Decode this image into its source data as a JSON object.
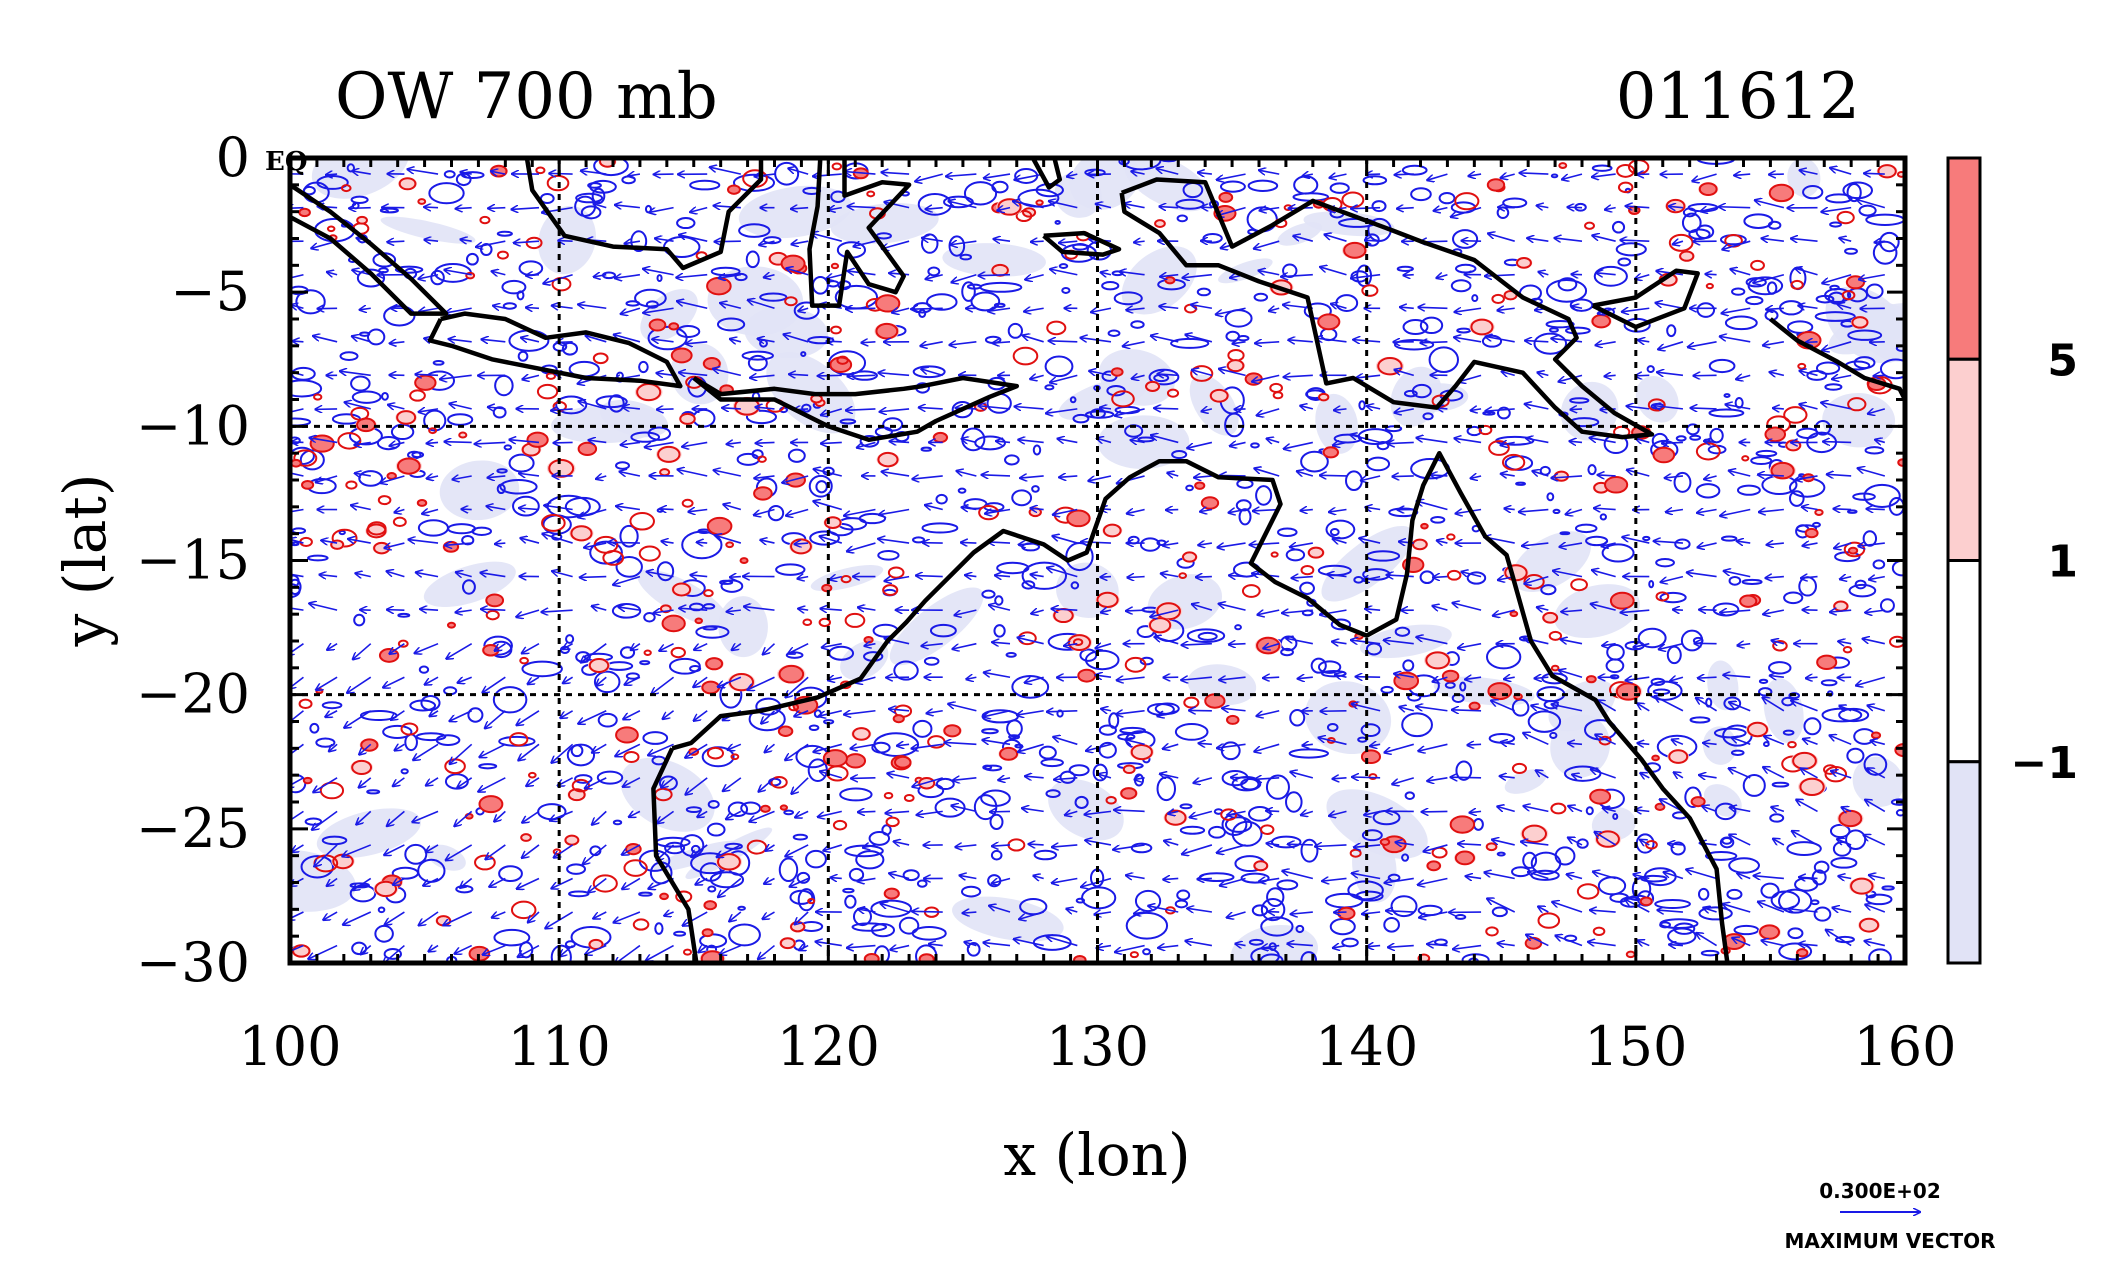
{
  "chart_data": {
    "type": "map",
    "title_left": "OW 700 mb",
    "title_right": "011612",
    "xlabel": "x (lon)",
    "ylabel": "y (lat)",
    "xlim": [
      100,
      160
    ],
    "ylim": [
      -30,
      0
    ],
    "xticks": [
      100,
      110,
      120,
      130,
      140,
      150,
      160
    ],
    "yticks": [
      0,
      -5,
      -10,
      -15,
      -20,
      -25,
      -30
    ],
    "gridlines_x": [
      110,
      120,
      130,
      140,
      150
    ],
    "gridlines_y": [
      -10,
      -20
    ],
    "grid": true,
    "equator_label": "EQ",
    "colorbar": {
      "levels": [
        "5",
        "1",
        "−1"
      ],
      "colors": [
        "#f77b7b",
        "#fccfcf",
        "#ffffff",
        "#e1e3f6"
      ],
      "placement": "right"
    },
    "vector_key": {
      "value": "0.300E+02",
      "label": "MAXIMUM VECTOR",
      "color": "#1010e0"
    },
    "colors": {
      "positive_contour": "#e01010",
      "negative_contour": "#1a1ae6",
      "coastline": "#000000",
      "vectors": "#1a1ae6"
    },
    "coastlines": [
      {
        "name": "Australia",
        "points": [
          [
            114.2,
            -22
          ],
          [
            113.5,
            -23.5
          ],
          [
            113.6,
            -26
          ],
          [
            114.8,
            -28
          ],
          [
            115.1,
            -30
          ],
          [
            118,
            -30
          ],
          [
            122,
            -30
          ],
          [
            126,
            -30
          ],
          [
            130,
            -30
          ],
          [
            135,
            -30
          ],
          [
            138,
            -30
          ],
          [
            141,
            -30
          ],
          [
            145,
            -30
          ],
          [
            150,
            -30
          ],
          [
            153.4,
            -30
          ],
          [
            153.2,
            -28.5
          ],
          [
            153,
            -26.5
          ],
          [
            152,
            -24.6
          ],
          [
            151,
            -23.5
          ],
          [
            150.2,
            -22.4
          ],
          [
            149,
            -21
          ],
          [
            148.5,
            -20.2
          ],
          [
            146.9,
            -19.3
          ],
          [
            146.1,
            -18
          ],
          [
            145.4,
            -15.5
          ],
          [
            145.2,
            -14.8
          ],
          [
            144.4,
            -14.1
          ],
          [
            143.5,
            -12.5
          ],
          [
            142.7,
            -11
          ],
          [
            142.1,
            -12.2
          ],
          [
            141.7,
            -13.5
          ],
          [
            141.5,
            -15.5
          ],
          [
            141.1,
            -17.2
          ],
          [
            140,
            -17.8
          ],
          [
            139,
            -17.4
          ],
          [
            137.8,
            -16.4
          ],
          [
            136.6,
            -15.8
          ],
          [
            135.7,
            -15.1
          ],
          [
            136.8,
            -12.9
          ],
          [
            136.5,
            -12
          ],
          [
            134.5,
            -11.9
          ],
          [
            133.3,
            -11.3
          ],
          [
            132.3,
            -11.3
          ],
          [
            131.2,
            -11.9
          ],
          [
            130.3,
            -12.7
          ],
          [
            129.6,
            -14.7
          ],
          [
            128.9,
            -15
          ],
          [
            128,
            -14.4
          ],
          [
            126.5,
            -13.9
          ],
          [
            125.4,
            -14.7
          ],
          [
            124.4,
            -15.7
          ],
          [
            123.6,
            -16.5
          ],
          [
            122.9,
            -17.3
          ],
          [
            122.2,
            -18
          ],
          [
            121.2,
            -19.4
          ],
          [
            119.6,
            -20.1
          ],
          [
            117.5,
            -20.6
          ],
          [
            116,
            -20.8
          ],
          [
            114.9,
            -21.8
          ],
          [
            114.2,
            -22
          ]
        ]
      },
      {
        "name": "Java",
        "points": [
          [
            105.6,
            -6
          ],
          [
            106.5,
            -5.8
          ],
          [
            108,
            -6
          ],
          [
            109.5,
            -6.7
          ],
          [
            111,
            -6.5
          ],
          [
            112.6,
            -6.9
          ],
          [
            114,
            -7.6
          ],
          [
            114.5,
            -8.5
          ],
          [
            113,
            -8.3
          ],
          [
            111,
            -8.2
          ],
          [
            109,
            -7.8
          ],
          [
            107.5,
            -7.5
          ],
          [
            106,
            -7
          ],
          [
            105.2,
            -6.8
          ],
          [
            105.6,
            -6
          ]
        ]
      },
      {
        "name": "Sumatra",
        "points": [
          [
            100,
            -1
          ],
          [
            101.5,
            -2
          ],
          [
            103,
            -3.2
          ],
          [
            104.5,
            -4.5
          ],
          [
            105.8,
            -5.8
          ],
          [
            104.5,
            -5.8
          ],
          [
            103,
            -4.3
          ],
          [
            101.5,
            -3
          ],
          [
            100,
            -2.2
          ]
        ]
      },
      {
        "name": "Borneo",
        "points": [
          [
            108.8,
            0
          ],
          [
            109,
            -1.2
          ],
          [
            110.2,
            -2.9
          ],
          [
            112,
            -3.3
          ],
          [
            114,
            -3.4
          ],
          [
            114.6,
            -4.1
          ],
          [
            116,
            -3.5
          ],
          [
            116.3,
            -2
          ],
          [
            117.5,
            -0.8
          ],
          [
            117.5,
            0
          ]
        ]
      },
      {
        "name": "Sulawesi",
        "points": [
          [
            119.7,
            0
          ],
          [
            119.6,
            -1.8
          ],
          [
            119.3,
            -3.4
          ],
          [
            119.4,
            -5.5
          ],
          [
            120.4,
            -5.5
          ],
          [
            120.7,
            -3.5
          ],
          [
            121.5,
            -4.7
          ],
          [
            122.5,
            -5
          ],
          [
            122.8,
            -4.4
          ],
          [
            121.5,
            -2.6
          ],
          [
            123,
            -1
          ],
          [
            122,
            -0.9
          ],
          [
            120.6,
            -1.4
          ],
          [
            120.6,
            0
          ]
        ]
      },
      {
        "name": "Lesser Sundas",
        "points": [
          [
            115,
            -8.2
          ],
          [
            116,
            -8.8
          ],
          [
            118,
            -8.6
          ],
          [
            119.5,
            -8.8
          ],
          [
            121,
            -8.8
          ],
          [
            122.8,
            -8.6
          ],
          [
            123.5,
            -8.5
          ],
          [
            125,
            -8.2
          ],
          [
            127,
            -8.5
          ],
          [
            126,
            -8.9
          ],
          [
            124,
            -9.8
          ],
          [
            123.3,
            -10.2
          ],
          [
            121.5,
            -10.5
          ],
          [
            120,
            -10
          ],
          [
            118,
            -9
          ],
          [
            116,
            -9
          ],
          [
            115,
            -8.2
          ]
        ]
      },
      {
        "name": "New Guinea",
        "points": [
          [
            130.9,
            -1.3
          ],
          [
            132.2,
            -0.8
          ],
          [
            134,
            -0.9
          ],
          [
            135,
            -3.3
          ],
          [
            136.5,
            -2.5
          ],
          [
            138,
            -1.6
          ],
          [
            140.7,
            -2.6
          ],
          [
            142,
            -3.1
          ],
          [
            144,
            -3.8
          ],
          [
            145.8,
            -5.2
          ],
          [
            147.5,
            -6
          ],
          [
            147.8,
            -6.7
          ],
          [
            147,
            -7.5
          ],
          [
            148,
            -8.5
          ],
          [
            149.2,
            -9.5
          ],
          [
            150.6,
            -10.3
          ],
          [
            149.5,
            -10.4
          ],
          [
            148,
            -10.2
          ],
          [
            147,
            -9.3
          ],
          [
            145.8,
            -8
          ],
          [
            144,
            -7.6
          ],
          [
            143.3,
            -8.5
          ],
          [
            142.6,
            -9.3
          ],
          [
            141,
            -9.1
          ],
          [
            139.5,
            -8.2
          ],
          [
            138.5,
            -8.4
          ],
          [
            137.8,
            -5.2
          ],
          [
            136,
            -4.6
          ],
          [
            134.5,
            -4
          ],
          [
            133.3,
            -4
          ],
          [
            132.3,
            -2.8
          ],
          [
            131,
            -2
          ],
          [
            130.9,
            -1.3
          ]
        ]
      },
      {
        "name": "Halmahera",
        "points": [
          [
            127.6,
            0
          ],
          [
            128.2,
            -1.1
          ],
          [
            128.6,
            -0.8
          ],
          [
            128.4,
            0
          ]
        ]
      },
      {
        "name": "Seram",
        "points": [
          [
            128,
            -2.9
          ],
          [
            129.5,
            -2.8
          ],
          [
            130.8,
            -3.4
          ],
          [
            130.2,
            -3.6
          ],
          [
            128.7,
            -3.5
          ],
          [
            128,
            -2.9
          ]
        ]
      },
      {
        "name": "New Britain",
        "points": [
          [
            148.4,
            -5.5
          ],
          [
            150,
            -5.2
          ],
          [
            151.5,
            -4.2
          ],
          [
            152.3,
            -4.3
          ],
          [
            151.8,
            -5.6
          ],
          [
            150,
            -6.3
          ],
          [
            148.4,
            -5.5
          ]
        ]
      },
      {
        "name": "Solomons",
        "points": [
          [
            155,
            -6
          ],
          [
            156,
            -6.8
          ],
          [
            157.5,
            -7.6
          ],
          [
            158.5,
            -8.2
          ],
          [
            159.8,
            -8.6
          ],
          [
            160,
            -9
          ]
        ]
      }
    ]
  }
}
